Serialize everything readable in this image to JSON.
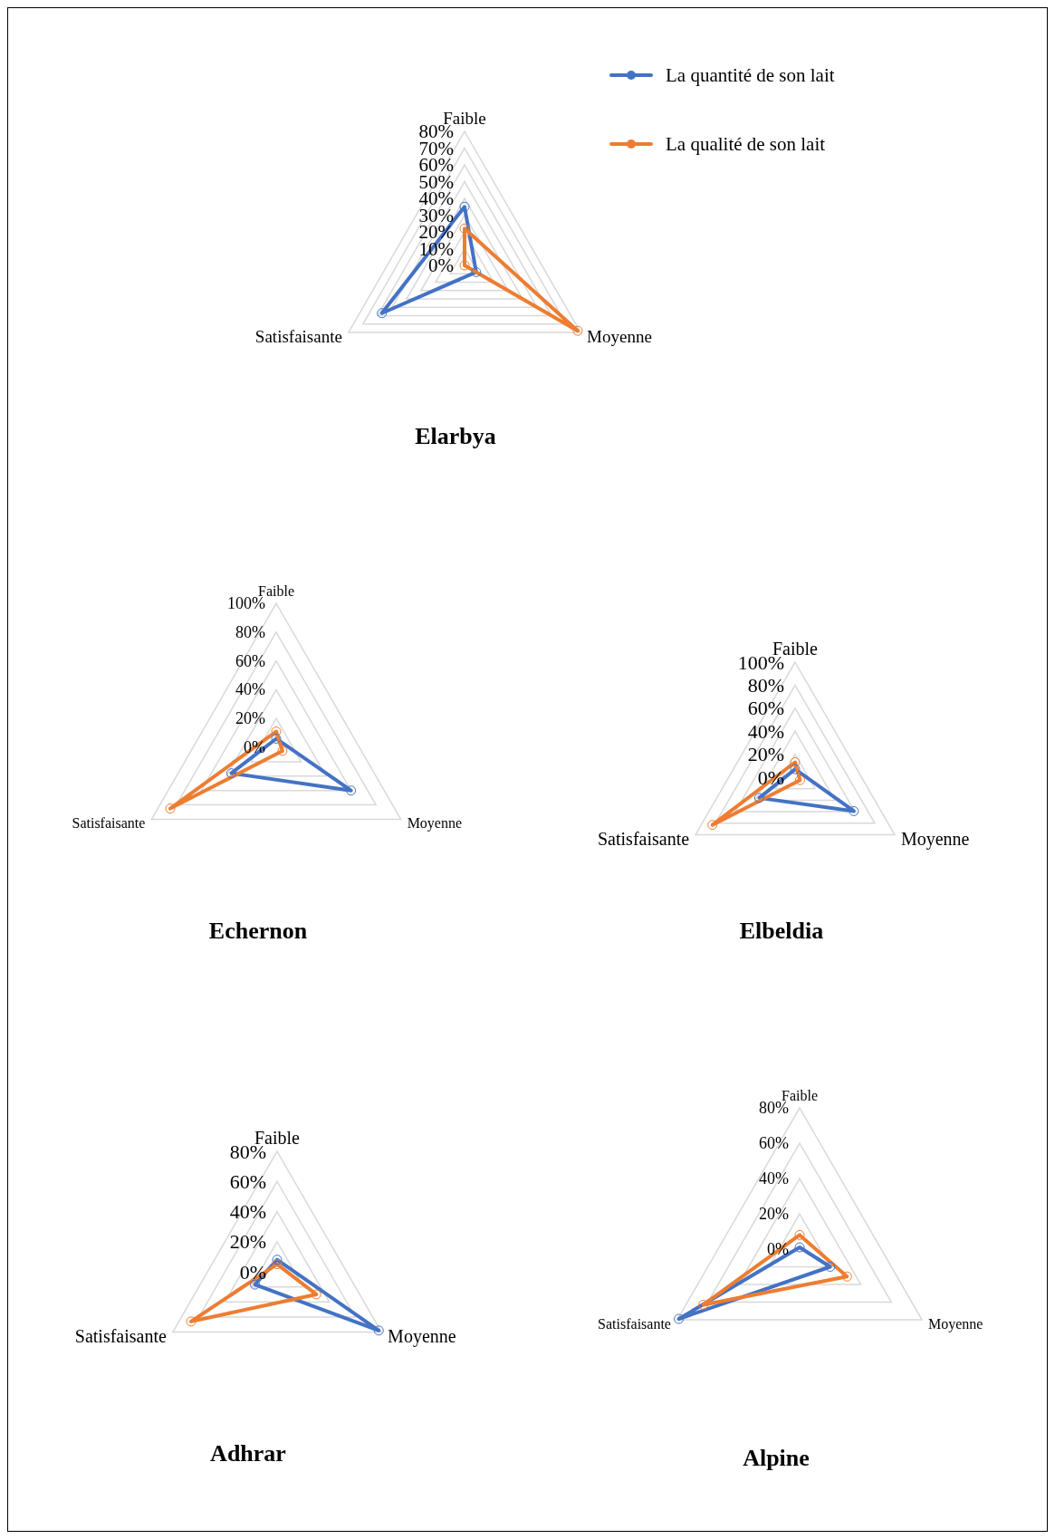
{
  "chart_data": [
    {
      "type": "radar",
      "title": "Elarbya",
      "categories": [
        "Faible",
        "Moyenne",
        "Satisfaisante"
      ],
      "legend": "top right",
      "grid": true,
      "marker": "circle",
      "ylim": [
        0,
        80
      ],
      "yticks": [
        {
          "value": 0,
          "label": "0%"
        },
        {
          "value": 10,
          "label": "10%"
        },
        {
          "value": 20,
          "label": "20%"
        },
        {
          "value": 30,
          "label": "30%"
        },
        {
          "value": 40,
          "label": "40%"
        },
        {
          "value": 50,
          "label": "50%"
        },
        {
          "value": 60,
          "label": "60%"
        },
        {
          "value": 70,
          "label": "70%"
        },
        {
          "value": 80,
          "label": "80%"
        }
      ],
      "series": [
        {
          "name": "La quantité de son lait",
          "color": "#4472c4",
          "values": [
            35,
            8,
            57
          ]
        },
        {
          "name": "La qualité de son  lait",
          "color": "#ed7d31",
          "values": [
            22,
            78,
            0
          ]
        }
      ]
    },
    {
      "type": "radar",
      "title": "Echernon",
      "categories": [
        "Faible",
        "Moyenne",
        "Satisfaisante"
      ],
      "grid": true,
      "marker": "circle",
      "ylim": [
        0,
        100
      ],
      "yticks": [
        {
          "value": 0,
          "label": "0%"
        },
        {
          "value": 20,
          "label": "20%"
        },
        {
          "value": 40,
          "label": "40%"
        },
        {
          "value": 60,
          "label": "60%"
        },
        {
          "value": 80,
          "label": "80%"
        },
        {
          "value": 100,
          "label": "100%"
        }
      ],
      "series": [
        {
          "color": "#4472c4",
          "values": [
            6,
            60,
            36
          ]
        },
        {
          "color": "#ed7d31",
          "values": [
            11,
            5,
            85
          ]
        }
      ]
    },
    {
      "type": "radar",
      "title": "Elbeldia",
      "categories": [
        "Faible",
        "Moyenne",
        "Satisfaisante"
      ],
      "grid": true,
      "marker": "circle",
      "ylim": [
        0,
        100
      ],
      "yticks": [
        {
          "value": 0,
          "label": "0%"
        },
        {
          "value": 20,
          "label": "20%"
        },
        {
          "value": 40,
          "label": "40%"
        },
        {
          "value": 60,
          "label": "60%"
        },
        {
          "value": 80,
          "label": "80%"
        },
        {
          "value": 100,
          "label": "100%"
        }
      ],
      "series": [
        {
          "color": "#4472c4",
          "values": [
            7,
            59,
            36
          ]
        },
        {
          "color": "#ed7d31",
          "values": [
            13,
            5,
            83
          ]
        }
      ]
    },
    {
      "type": "radar",
      "title": "Adhrar",
      "categories": [
        "Faible",
        "Moyenne",
        "Satisfaisante"
      ],
      "grid": true,
      "marker": "circle",
      "ylim": [
        0,
        80
      ],
      "yticks": [
        {
          "value": 0,
          "label": "0%"
        },
        {
          "value": 20,
          "label": "20%"
        },
        {
          "value": 40,
          "label": "40%"
        },
        {
          "value": 60,
          "label": "60%"
        },
        {
          "value": 80,
          "label": "80%"
        }
      ],
      "series": [
        {
          "color": "#4472c4",
          "values": [
            8,
            78,
            17
          ]
        },
        {
          "color": "#ed7d31",
          "values": [
            5,
            30,
            66
          ]
        }
      ]
    },
    {
      "type": "radar",
      "title": "Alpine",
      "categories": [
        "Faible",
        "Moyenne",
        "Satisfaisante"
      ],
      "grid": true,
      "marker": "circle",
      "ylim": [
        0,
        80
      ],
      "yticks": [
        {
          "value": 0,
          "label": "0%"
        },
        {
          "value": 20,
          "label": "20%"
        },
        {
          "value": 40,
          "label": "40%"
        },
        {
          "value": 60,
          "label": "60%"
        },
        {
          "value": 80,
          "label": "80%"
        }
      ],
      "series": [
        {
          "color": "#4472c4",
          "values": [
            1,
            20,
            79
          ]
        },
        {
          "color": "#ed7d31",
          "values": [
            8,
            31,
            63
          ]
        }
      ]
    }
  ]
}
